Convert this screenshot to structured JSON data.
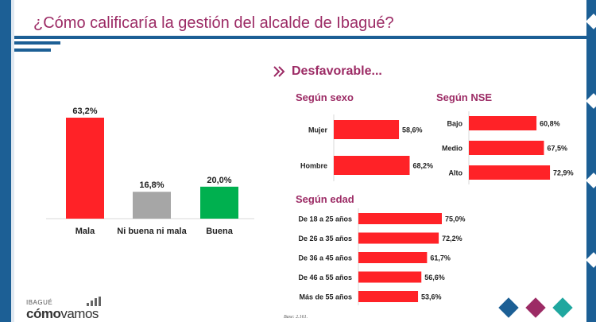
{
  "title": "¿Cómo calificaría la gestión del alcalde de Ibagué?",
  "desfavorable_title": "Desfavorable...",
  "base_note": "Base: 2.161.",
  "logo": {
    "top": "IBAGUÉ",
    "main_a": "cómo",
    "main_b": "vamos"
  },
  "colors": {
    "brand_blue": "#1c5f95",
    "title_magenta": "#9c2b65",
    "red": "#ff2227",
    "gray": "#a6a6a6",
    "green": "#00b04f"
  },
  "chart_data": [
    {
      "type": "bar",
      "categories": [
        "Mala",
        "Ni buena ni mala",
        "Buena"
      ],
      "values": [
        63.2,
        16.8,
        20.0
      ],
      "value_labels": [
        "63,2%",
        "16,8%",
        "20,0%"
      ],
      "colors": [
        "#ff2227",
        "#a6a6a6",
        "#00b04f"
      ],
      "ylim": [
        0,
        63.2
      ]
    },
    {
      "type": "bar",
      "orientation": "horizontal",
      "title": "Según sexo",
      "categories": [
        "Mujer",
        "Hombre"
      ],
      "values": [
        58.6,
        68.2
      ],
      "value_labels": [
        "58,6%",
        "68,2%"
      ]
    },
    {
      "type": "bar",
      "orientation": "horizontal",
      "title": "Según NSE",
      "categories": [
        "Bajo",
        "Medio",
        "Alto"
      ],
      "values": [
        60.8,
        67.5,
        72.9
      ],
      "value_labels": [
        "60,8%",
        "67,5%",
        "72,9%"
      ]
    },
    {
      "type": "bar",
      "orientation": "horizontal",
      "title": "Según edad",
      "categories": [
        "De 18 a 25 años",
        "De 26 a 35 años",
        "De 36 a 45 años",
        "De 46 a 55 años",
        "Más de 55 años"
      ],
      "values": [
        75.0,
        72.2,
        61.7,
        56.6,
        53.6
      ],
      "value_labels": [
        "75,0%",
        "72,2%",
        "61,7%",
        "56,6%",
        "53,6%"
      ]
    }
  ]
}
